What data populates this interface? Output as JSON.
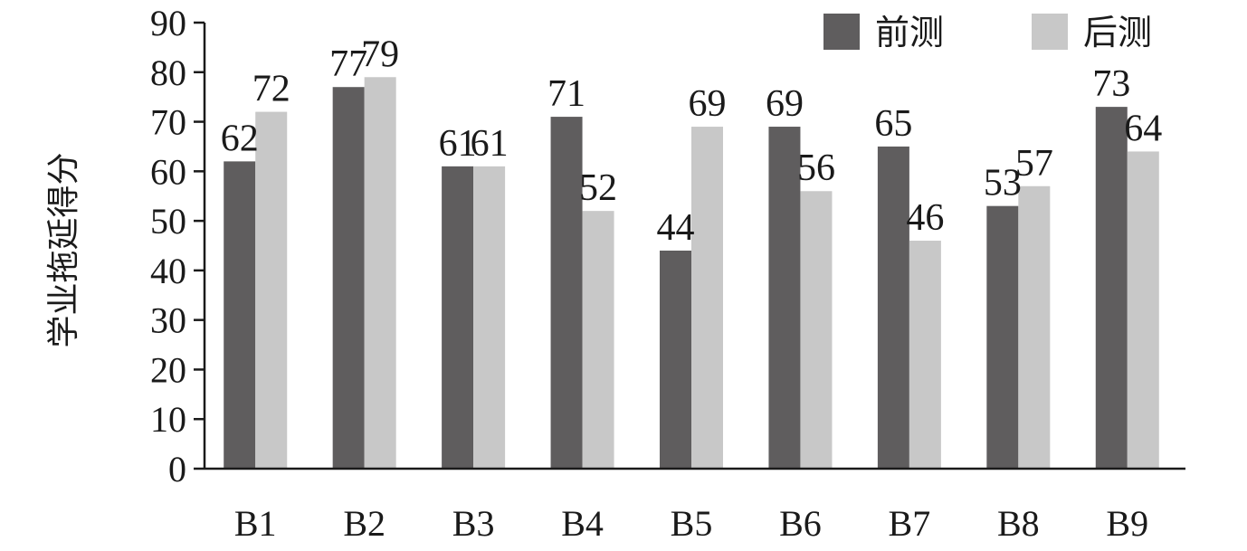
{
  "chart_data": {
    "type": "bar",
    "categories": [
      "B1",
      "B2",
      "B3",
      "B4",
      "B5",
      "B6",
      "B7",
      "B8",
      "B9"
    ],
    "series": [
      {
        "name": "前测",
        "color": "#5f5d5e",
        "values": [
          62,
          77,
          61,
          71,
          44,
          69,
          65,
          53,
          73
        ]
      },
      {
        "name": "后测",
        "color": "#c8c8c8",
        "values": [
          72,
          79,
          61,
          52,
          69,
          56,
          46,
          57,
          64
        ]
      }
    ],
    "ylabel": "学业拖延得分",
    "xlabel": "",
    "ylim": [
      0,
      90
    ],
    "yticks": [
      0,
      10,
      20,
      30,
      40,
      50,
      60,
      70,
      80,
      90
    ],
    "grid": false,
    "legend": "top-right"
  }
}
